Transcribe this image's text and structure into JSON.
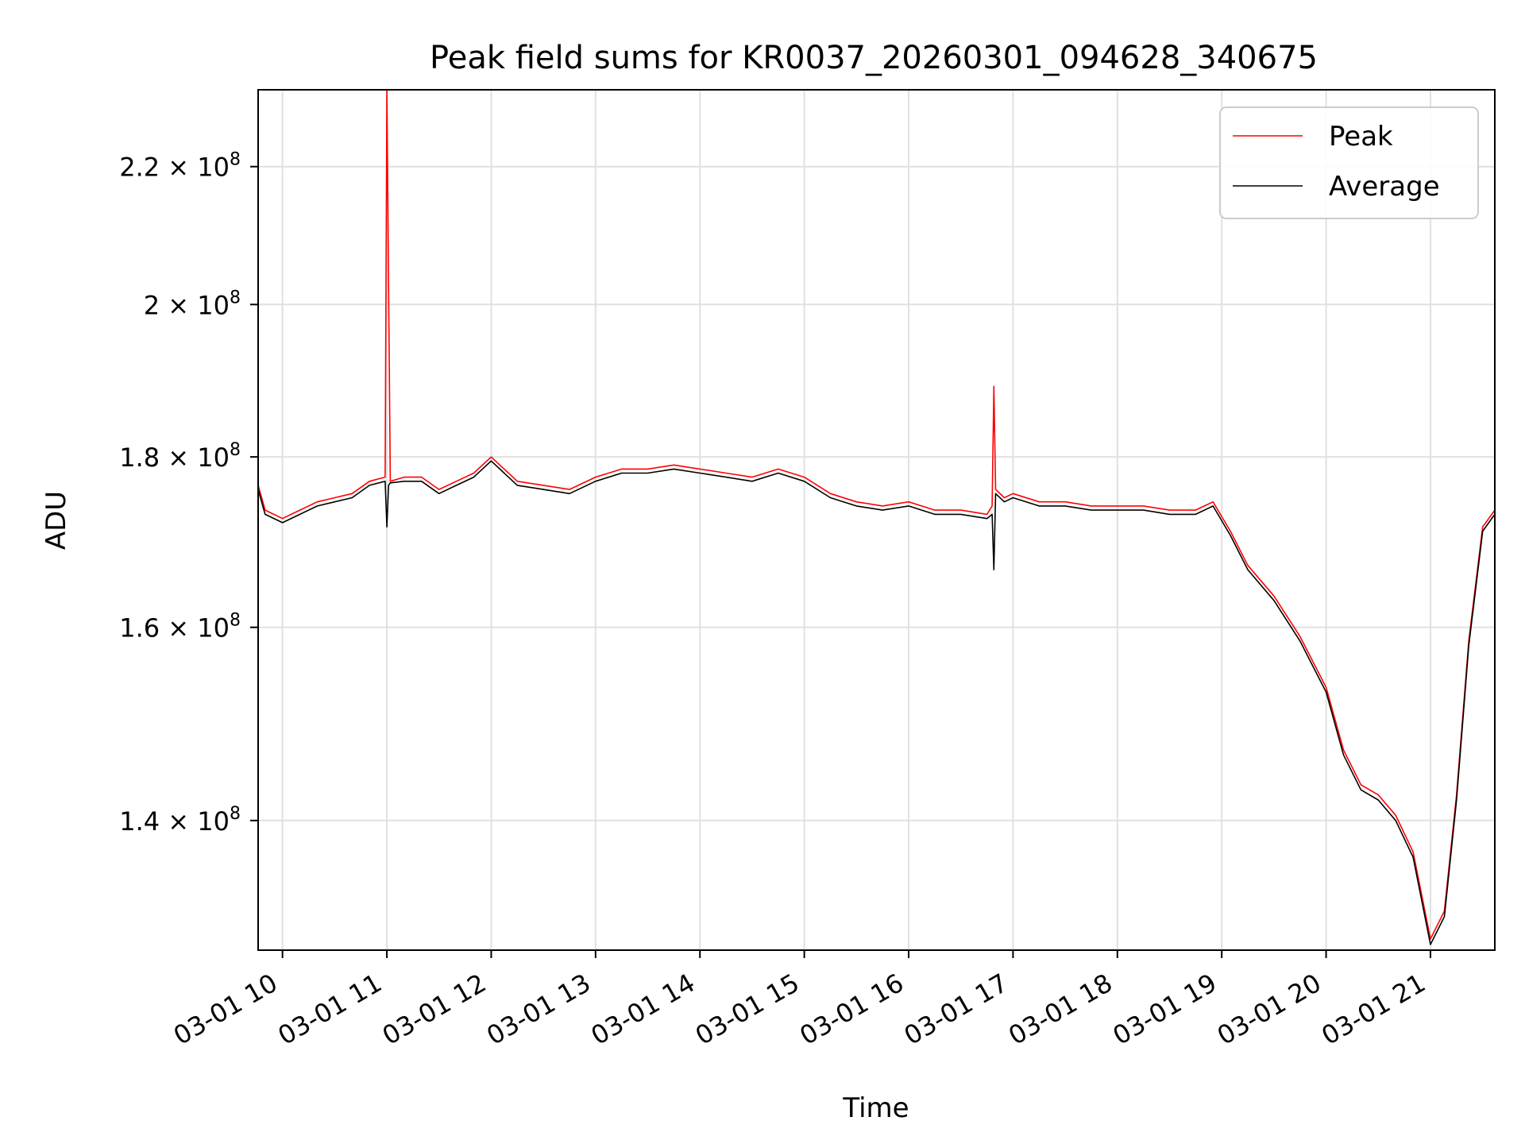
{
  "chart_data": {
    "type": "line",
    "title": "Peak field sums for KR0037_20260301_094628_340675",
    "xlabel": "Time",
    "ylabel": "ADU",
    "y_scale": "log",
    "xlim": [
      "2026-03-01 09:46",
      "2026-03-01 21:37"
    ],
    "ylim": [
      128000000,
      232000000
    ],
    "x_ticks": [
      {
        "value": "2026-03-01 10:00",
        "label": "03-01 10"
      },
      {
        "value": "2026-03-01 11:00",
        "label": "03-01 11"
      },
      {
        "value": "2026-03-01 12:00",
        "label": "03-01 12"
      },
      {
        "value": "2026-03-01 13:00",
        "label": "03-01 13"
      },
      {
        "value": "2026-03-01 14:00",
        "label": "03-01 14"
      },
      {
        "value": "2026-03-01 15:00",
        "label": "03-01 15"
      },
      {
        "value": "2026-03-01 16:00",
        "label": "03-01 16"
      },
      {
        "value": "2026-03-01 17:00",
        "label": "03-01 17"
      },
      {
        "value": "2026-03-01 18:00",
        "label": "03-01 18"
      },
      {
        "value": "2026-03-01 19:00",
        "label": "03-01 19"
      },
      {
        "value": "2026-03-01 20:00",
        "label": "03-01 20"
      },
      {
        "value": "2026-03-01 21:00",
        "label": "03-01 21"
      }
    ],
    "y_ticks": [
      {
        "value": 140000000,
        "mantissa": "1.4",
        "exponent": "8"
      },
      {
        "value": 160000000,
        "mantissa": "1.6",
        "exponent": "8"
      },
      {
        "value": 180000000,
        "mantissa": "1.8",
        "exponent": "8"
      },
      {
        "value": 200000000,
        "mantissa": "2",
        "exponent": "8"
      },
      {
        "value": 220000000,
        "mantissa": "2.2",
        "exponent": "8"
      }
    ],
    "grid": true,
    "legend_position": "top-right",
    "series": [
      {
        "name": "Peak",
        "color": "#ff0000",
        "x": [
          "2026-03-01 09:46",
          "2026-03-01 09:50",
          "2026-03-01 10:00",
          "2026-03-01 10:10",
          "2026-03-01 10:20",
          "2026-03-01 10:30",
          "2026-03-01 10:40",
          "2026-03-01 10:50",
          "2026-03-01 10:59",
          "2026-03-01 11:00",
          "2026-03-01 11:01",
          "2026-03-01 11:02",
          "2026-03-01 11:10",
          "2026-03-01 11:20",
          "2026-03-01 11:30",
          "2026-03-01 11:40",
          "2026-03-01 11:50",
          "2026-03-01 12:00",
          "2026-03-01 12:15",
          "2026-03-01 12:30",
          "2026-03-01 12:45",
          "2026-03-01 13:00",
          "2026-03-01 13:15",
          "2026-03-01 13:30",
          "2026-03-01 13:45",
          "2026-03-01 14:00",
          "2026-03-01 14:15",
          "2026-03-01 14:30",
          "2026-03-01 14:45",
          "2026-03-01 15:00",
          "2026-03-01 15:15",
          "2026-03-01 15:30",
          "2026-03-01 15:45",
          "2026-03-01 16:00",
          "2026-03-01 16:15",
          "2026-03-01 16:30",
          "2026-03-01 16:45",
          "2026-03-01 16:48",
          "2026-03-01 16:49",
          "2026-03-01 16:50",
          "2026-03-01 16:55",
          "2026-03-01 17:00",
          "2026-03-01 17:15",
          "2026-03-01 17:30",
          "2026-03-01 17:45",
          "2026-03-01 18:00",
          "2026-03-01 18:15",
          "2026-03-01 18:30",
          "2026-03-01 18:45",
          "2026-03-01 18:55",
          "2026-03-01 19:05",
          "2026-03-01 19:15",
          "2026-03-01 19:30",
          "2026-03-01 19:45",
          "2026-03-01 20:00",
          "2026-03-01 20:10",
          "2026-03-01 20:20",
          "2026-03-01 20:30",
          "2026-03-01 20:40",
          "2026-03-01 20:50",
          "2026-03-01 21:00",
          "2026-03-01 21:08",
          "2026-03-01 21:15",
          "2026-03-01 21:22",
          "2026-03-01 21:30",
          "2026-03-01 21:37"
        ],
        "y": [
          176500000,
          173500000,
          172500000,
          173500000,
          174500000,
          175000000,
          175500000,
          177000000,
          177500000,
          232000000,
          203000000,
          177000000,
          177500000,
          177500000,
          176000000,
          177000000,
          178000000,
          180000000,
          177000000,
          176500000,
          176000000,
          177500000,
          178500000,
          178500000,
          179000000,
          178500000,
          178000000,
          177500000,
          178500000,
          177500000,
          175500000,
          174500000,
          174000000,
          174500000,
          173500000,
          173500000,
          173000000,
          174000000,
          189000000,
          176000000,
          175000000,
          175500000,
          174500000,
          174500000,
          174000000,
          174000000,
          174000000,
          173500000,
          173500000,
          174500000,
          171000000,
          167000000,
          163500000,
          159000000,
          153500000,
          147000000,
          143500000,
          142500000,
          140500000,
          137000000,
          129000000,
          131500000,
          142500000,
          158500000,
          171500000,
          173500000
        ]
      },
      {
        "name": "Average",
        "color": "#000000",
        "x": [
          "2026-03-01 09:46",
          "2026-03-01 09:50",
          "2026-03-01 10:00",
          "2026-03-01 10:10",
          "2026-03-01 10:20",
          "2026-03-01 10:30",
          "2026-03-01 10:40",
          "2026-03-01 10:50",
          "2026-03-01 10:59",
          "2026-03-01 11:00",
          "2026-03-01 11:01",
          "2026-03-01 11:02",
          "2026-03-01 11:10",
          "2026-03-01 11:20",
          "2026-03-01 11:30",
          "2026-03-01 11:40",
          "2026-03-01 11:50",
          "2026-03-01 12:00",
          "2026-03-01 12:15",
          "2026-03-01 12:30",
          "2026-03-01 12:45",
          "2026-03-01 13:00",
          "2026-03-01 13:15",
          "2026-03-01 13:30",
          "2026-03-01 13:45",
          "2026-03-01 14:00",
          "2026-03-01 14:15",
          "2026-03-01 14:30",
          "2026-03-01 14:45",
          "2026-03-01 15:00",
          "2026-03-01 15:15",
          "2026-03-01 15:30",
          "2026-03-01 15:45",
          "2026-03-01 16:00",
          "2026-03-01 16:15",
          "2026-03-01 16:30",
          "2026-03-01 16:45",
          "2026-03-01 16:48",
          "2026-03-01 16:49",
          "2026-03-01 16:50",
          "2026-03-01 16:55",
          "2026-03-01 17:00",
          "2026-03-01 17:15",
          "2026-03-01 17:30",
          "2026-03-01 17:45",
          "2026-03-01 18:00",
          "2026-03-01 18:15",
          "2026-03-01 18:30",
          "2026-03-01 18:45",
          "2026-03-01 18:55",
          "2026-03-01 19:05",
          "2026-03-01 19:15",
          "2026-03-01 19:30",
          "2026-03-01 19:45",
          "2026-03-01 20:00",
          "2026-03-01 20:10",
          "2026-03-01 20:20",
          "2026-03-01 20:30",
          "2026-03-01 20:40",
          "2026-03-01 20:50",
          "2026-03-01 21:00",
          "2026-03-01 21:08",
          "2026-03-01 21:15",
          "2026-03-01 21:22",
          "2026-03-01 21:30",
          "2026-03-01 21:37"
        ],
        "y": [
          176000000,
          173000000,
          172000000,
          173000000,
          174000000,
          174500000,
          175000000,
          176500000,
          177000000,
          171500000,
          176500000,
          176800000,
          177000000,
          177000000,
          175500000,
          176500000,
          177500000,
          179500000,
          176500000,
          176000000,
          175500000,
          177000000,
          178000000,
          178000000,
          178500000,
          178000000,
          177500000,
          177000000,
          178000000,
          177000000,
          175000000,
          174000000,
          173500000,
          174000000,
          173000000,
          173000000,
          172500000,
          173000000,
          166500000,
          175500000,
          174500000,
          175000000,
          174000000,
          174000000,
          173500000,
          173500000,
          173500000,
          173000000,
          173000000,
          174000000,
          170500000,
          166500000,
          163000000,
          158500000,
          153000000,
          146500000,
          143000000,
          142000000,
          140000000,
          136500000,
          128500000,
          131000000,
          142000000,
          158000000,
          171000000,
          173000000
        ]
      }
    ]
  }
}
